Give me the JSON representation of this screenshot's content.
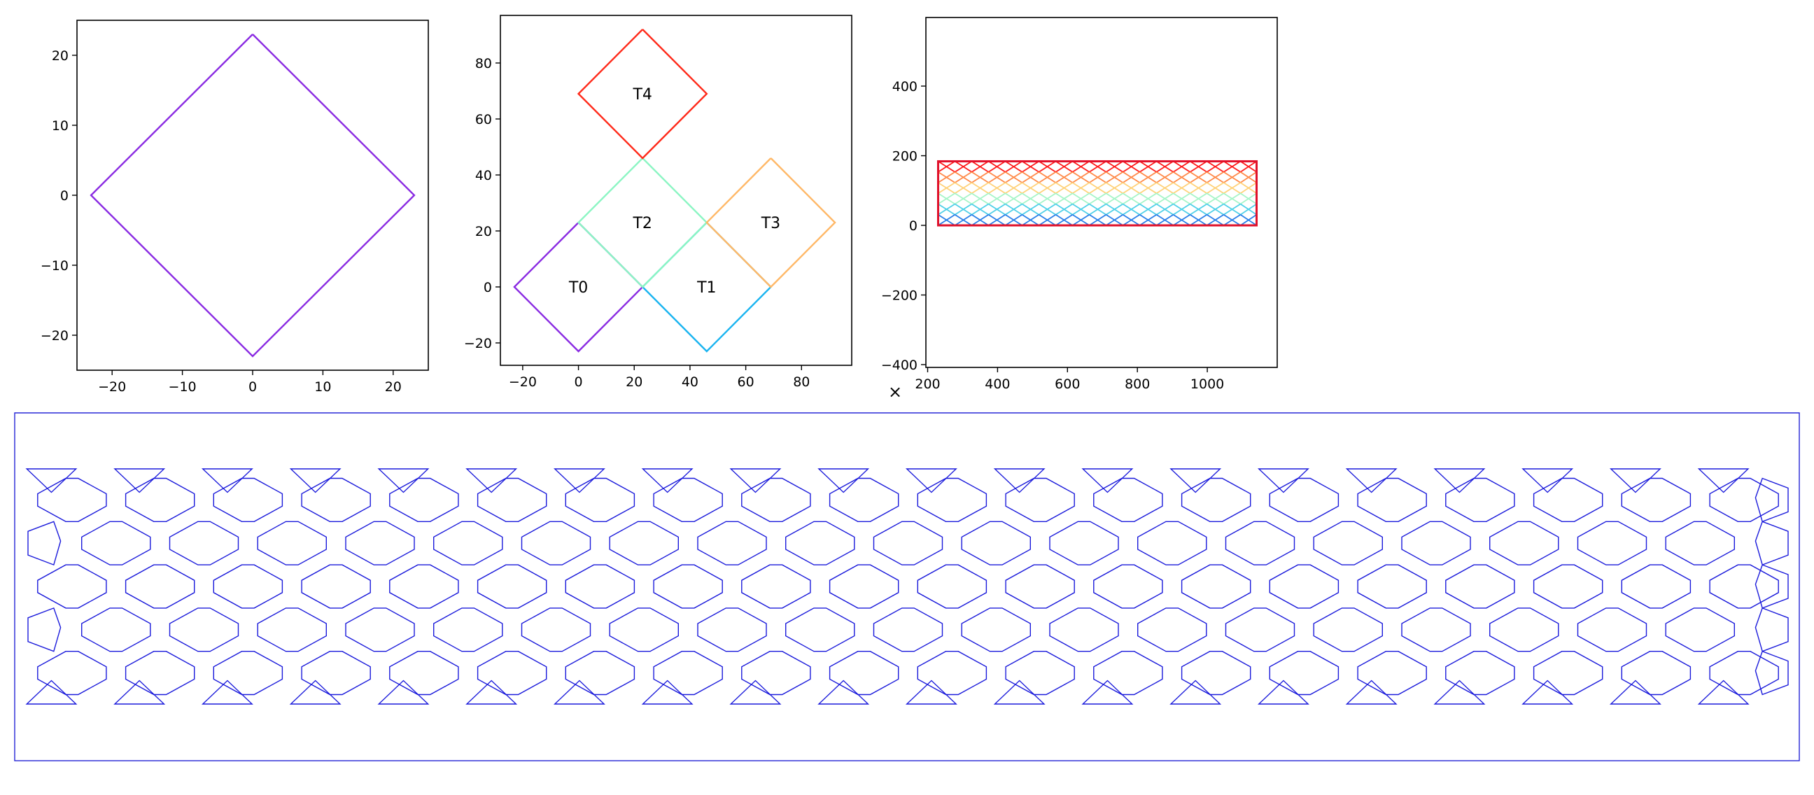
{
  "chart_data": [
    {
      "type": "line",
      "xlim": [
        -25,
        25
      ],
      "ylim": [
        -25,
        25
      ],
      "xticks": [
        "−20",
        "−10",
        "0",
        "10",
        "20"
      ],
      "xtick_values": [
        -20,
        -10,
        0,
        10,
        20
      ],
      "yticks": [
        "−20",
        "−10",
        "0",
        "10",
        "20"
      ],
      "ytick_values": [
        -20,
        -10,
        0,
        10,
        20
      ],
      "grid": false,
      "series": [
        {
          "color": "#8a2be2",
          "x": [
            0,
            23,
            0,
            -23,
            0
          ],
          "y": [
            23,
            0,
            -23,
            0,
            23
          ]
        }
      ]
    },
    {
      "type": "line",
      "xlim": [
        -28,
        98
      ],
      "ylim": [
        -28,
        97
      ],
      "xticks": [
        "−20",
        "0",
        "20",
        "40",
        "60",
        "80"
      ],
      "xtick_values": [
        -20,
        0,
        20,
        40,
        60,
        80
      ],
      "yticks": [
        "−20",
        "0",
        "20",
        "40",
        "60",
        "80"
      ],
      "ytick_values": [
        -20,
        0,
        20,
        40,
        60,
        80
      ],
      "grid": false,
      "series": [
        {
          "name": "T0",
          "color": "#8a2be2",
          "center": [
            0,
            0
          ]
        },
        {
          "name": "T1",
          "color": "#1ab4f0",
          "center": [
            46,
            0
          ]
        },
        {
          "name": "T2",
          "color": "#8cf5c3",
          "center": [
            23,
            23
          ]
        },
        {
          "name": "T3",
          "color": "#ffb867",
          "center": [
            69,
            23
          ]
        },
        {
          "name": "T4",
          "color": "#ff2a1a",
          "center": [
            23,
            69
          ]
        }
      ],
      "half_diagonal": 23
    },
    {
      "type": "line",
      "xlim": [
        195,
        1200
      ],
      "ylim": [
        -408,
        597
      ],
      "xticks": [
        "200",
        "400",
        "600",
        "800",
        "1000"
      ],
      "xtick_values": [
        200,
        400,
        600,
        800,
        1000
      ],
      "yticks": [
        "−400",
        "−200",
        "0",
        "200",
        "400"
      ],
      "ytick_values": [
        -400,
        -200,
        0,
        200,
        400
      ],
      "grid": false,
      "region": {
        "x": [
          230,
          1141
        ],
        "y": [
          0,
          184
        ]
      },
      "colors": [
        "#ff1a1a",
        "#ff8a4a",
        "#ffd27a",
        "#a6f5c8",
        "#4fd0e8",
        "#2a7fe8"
      ]
    }
  ],
  "toolbar": {
    "close_symbol": "×"
  },
  "lattice": {
    "columns": 20,
    "rows": 5,
    "color": "#1a1adb"
  }
}
